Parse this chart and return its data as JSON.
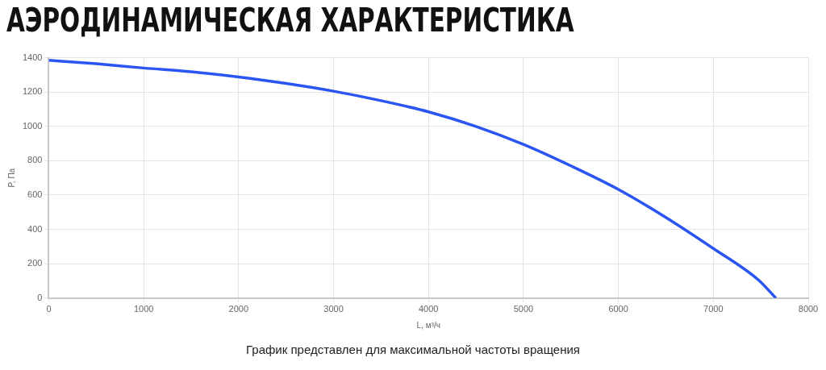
{
  "chart_data": {
    "type": "line",
    "title": "АЭРОДИНАМИЧЕСКАЯ ХАРАКТЕРИСТИКА",
    "xlabel": "L, м³/ч",
    "ylabel": "P, Па",
    "annotations": [
      "График представлен для максимальной частоты вращения"
    ],
    "series": [
      {
        "color": "#2b55f2",
        "x": [
          0,
          500,
          1000,
          1500,
          2000,
          2500,
          3000,
          3500,
          4000,
          4500,
          5000,
          5500,
          6000,
          6500,
          7000,
          7470,
          7660
        ],
        "values": [
          1385,
          1365,
          1340,
          1318,
          1288,
          1250,
          1205,
          1150,
          1085,
          1000,
          895,
          770,
          633,
          470,
          289,
          108,
          0
        ]
      }
    ],
    "xlim": [
      0,
      8000
    ],
    "xticks": [
      0,
      1000,
      2000,
      3000,
      4000,
      5000,
      6000,
      7000,
      8000
    ],
    "ylim": [
      0,
      1400
    ],
    "yticks": [
      0,
      200,
      400,
      600,
      800,
      1000,
      1200,
      1400
    ],
    "grid": true,
    "legend": false,
    "marker": "none",
    "line_style": "solid"
  }
}
